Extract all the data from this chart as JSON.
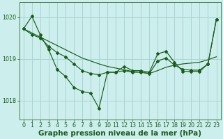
{
  "bg_color": "#cceeed",
  "grid_color": "#aad4d2",
  "line_color": "#1a5c1a",
  "marker_color": "#1a5c1a",
  "xlabel": "Graphe pression niveau de la mer (hPa)",
  "xlabel_fontsize": 7.5,
  "xlim": [
    -0.5,
    23.5
  ],
  "ylim": [
    1017.55,
    1020.35
  ],
  "yticks": [
    1018,
    1019,
    1020
  ],
  "xticks": [
    0,
    1,
    2,
    3,
    4,
    5,
    6,
    7,
    8,
    9,
    10,
    11,
    12,
    13,
    14,
    15,
    16,
    17,
    18,
    19,
    20,
    21,
    22,
    23
  ],
  "tick_fontsize": 5.8,
  "series_main": [
    1019.72,
    1020.02,
    1019.57,
    1019.22,
    1018.75,
    1018.58,
    1018.32,
    1018.22,
    1018.18,
    1017.82,
    1018.68,
    1018.68,
    1018.82,
    1018.72,
    1018.72,
    1018.68,
    1019.12,
    1019.18,
    1018.92,
    1018.7,
    1018.7,
    1018.7,
    1018.88,
    1019.95
  ],
  "series_trend": [
    1019.72,
    1019.62,
    1019.52,
    1019.42,
    1019.32,
    1019.22,
    1019.12,
    1019.02,
    1018.95,
    1018.88,
    1018.82,
    1018.78,
    1018.74,
    1018.7,
    1018.68,
    1018.65,
    1018.72,
    1018.8,
    1018.85,
    1018.88,
    1018.9,
    1018.92,
    1018.98,
    1019.05
  ],
  "series_smooth": [
    1019.72,
    1019.58,
    1019.5,
    1019.3,
    1019.15,
    1019.05,
    1018.88,
    1018.72,
    1018.65,
    1018.62,
    1018.68,
    1018.68,
    1018.72,
    1018.68,
    1018.68,
    1018.65,
    1018.95,
    1019.02,
    1018.85,
    1018.75,
    1018.73,
    1018.73,
    1018.88,
    1019.95
  ]
}
